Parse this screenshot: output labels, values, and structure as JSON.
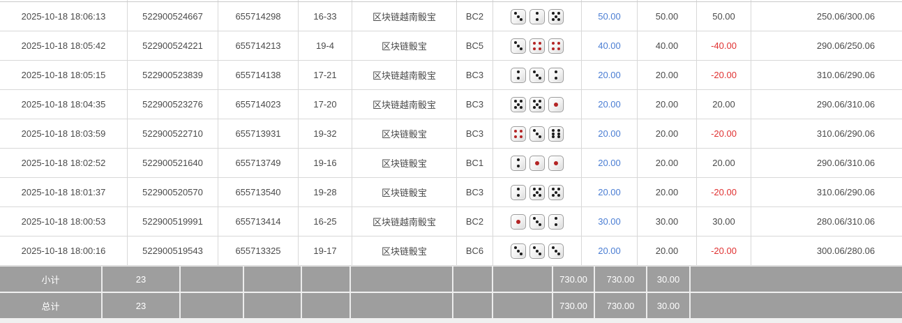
{
  "colors": {
    "link_blue": "#4a7dd3",
    "negative_red": "#e03131",
    "footer_bg": "#9e9e9e",
    "row_bg": "#ffffff",
    "border": "#d8d8d8",
    "red_pip": "#b32424"
  },
  "rows": [
    {
      "time": "2025-10-18 18:06:13",
      "bet_id": "522900524667",
      "round_id": "655714298",
      "period": "16-33",
      "game": "区块链越南骰宝",
      "table_code": "BC2",
      "dice": [
        3,
        2,
        5
      ],
      "bet_amount": "50.00",
      "valid_amount": "50.00",
      "win_loss": "50.00",
      "balance": "250.06/300.06"
    },
    {
      "time": "2025-10-18 18:05:42",
      "bet_id": "522900524221",
      "round_id": "655714213",
      "period": "19-4",
      "game": "区块链骰宝",
      "table_code": "BC5",
      "dice": [
        3,
        4,
        4
      ],
      "bet_amount": "40.00",
      "valid_amount": "40.00",
      "win_loss": "-40.00",
      "balance": "290.06/250.06"
    },
    {
      "time": "2025-10-18 18:05:15",
      "bet_id": "522900523839",
      "round_id": "655714138",
      "period": "17-21",
      "game": "区块链越南骰宝",
      "table_code": "BC3",
      "dice": [
        2,
        3,
        2
      ],
      "bet_amount": "20.00",
      "valid_amount": "20.00",
      "win_loss": "-20.00",
      "balance": "310.06/290.06"
    },
    {
      "time": "2025-10-18 18:04:35",
      "bet_id": "522900523276",
      "round_id": "655714023",
      "period": "17-20",
      "game": "区块链越南骰宝",
      "table_code": "BC3",
      "dice": [
        5,
        5,
        1
      ],
      "bet_amount": "20.00",
      "valid_amount": "20.00",
      "win_loss": "20.00",
      "balance": "290.06/310.06"
    },
    {
      "time": "2025-10-18 18:03:59",
      "bet_id": "522900522710",
      "round_id": "655713931",
      "period": "19-32",
      "game": "区块链骰宝",
      "table_code": "BC3",
      "dice": [
        4,
        3,
        6
      ],
      "bet_amount": "20.00",
      "valid_amount": "20.00",
      "win_loss": "-20.00",
      "balance": "310.06/290.06"
    },
    {
      "time": "2025-10-18 18:02:52",
      "bet_id": "522900521640",
      "round_id": "655713749",
      "period": "19-16",
      "game": "区块链骰宝",
      "table_code": "BC1",
      "dice": [
        2,
        1,
        1
      ],
      "bet_amount": "20.00",
      "valid_amount": "20.00",
      "win_loss": "20.00",
      "balance": "290.06/310.06"
    },
    {
      "time": "2025-10-18 18:01:37",
      "bet_id": "522900520570",
      "round_id": "655713540",
      "period": "19-28",
      "game": "区块链骰宝",
      "table_code": "BC3",
      "dice": [
        2,
        5,
        5
      ],
      "bet_amount": "20.00",
      "valid_amount": "20.00",
      "win_loss": "-20.00",
      "balance": "310.06/290.06"
    },
    {
      "time": "2025-10-18 18:00:53",
      "bet_id": "522900519991",
      "round_id": "655713414",
      "period": "16-25",
      "game": "区块链越南骰宝",
      "table_code": "BC2",
      "dice": [
        1,
        3,
        2
      ],
      "bet_amount": "30.00",
      "valid_amount": "30.00",
      "win_loss": "30.00",
      "balance": "280.06/310.06"
    },
    {
      "time": "2025-10-18 18:00:16",
      "bet_id": "522900519543",
      "round_id": "655713325",
      "period": "19-17",
      "game": "区块链骰宝",
      "table_code": "BC6",
      "dice": [
        3,
        3,
        3
      ],
      "bet_amount": "20.00",
      "valid_amount": "20.00",
      "win_loss": "-20.00",
      "balance": "300.06/280.06"
    }
  ],
  "footer": {
    "subtotal_label": "小计",
    "grand_total_label": "总计",
    "count": "23",
    "bet_total": "730.00",
    "valid_total": "730.00",
    "win_loss_total": "30.00"
  }
}
